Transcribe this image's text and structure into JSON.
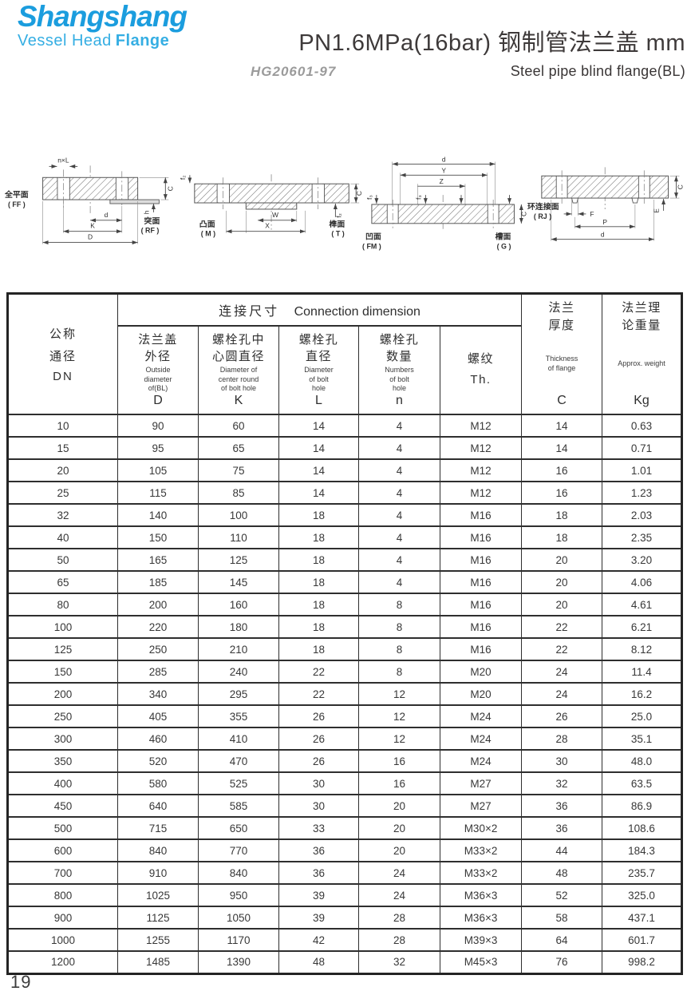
{
  "brand": {
    "name": "Shangshang",
    "tagline_vessel": "Vessel Head",
    "tagline_flange": "Flange",
    "name_color": "#1b9dde",
    "tagline_color": "#35aee3"
  },
  "header": {
    "title": "PN1.6MPa(16bar) 钢制管法兰盖  mm",
    "standard": "HG20601-97",
    "subtitle_en": "Steel pipe blind flange(BL)"
  },
  "diagrams": [
    {
      "left_cn": "全平面",
      "left_code": "( FF )",
      "right_cn": "突面",
      "right_code": "( RF )",
      "nxl": "n×L",
      "d": "d",
      "k": "K",
      "dd": "D",
      "c": "C",
      "h": "h"
    },
    {
      "left_cn": "凸面",
      "left_code": "( M )",
      "right_cn": "榫面",
      "right_code": "( T )",
      "w": "W",
      "x": "X",
      "c": "C",
      "f2": "f₂"
    },
    {
      "left_cn": "凹面",
      "left_code": "( FM )",
      "right_cn": "槽面",
      "right_code": "( G )",
      "d": "d",
      "y": "Y",
      "z": "Z",
      "c": "C",
      "f3": "f₃"
    },
    {
      "left_cn": "环连接面",
      "left_code": "( RJ )",
      "f": "F",
      "p": "P",
      "d": "d",
      "e": "E",
      "c": "C"
    }
  ],
  "table": {
    "group_header_cn": "连接尺寸",
    "group_header_en": "Connection dimension",
    "col_dn": {
      "cn1": "公称",
      "cn2": "通径",
      "sym": "DN"
    },
    "col_d": {
      "cn": "法兰盖\n外径",
      "en": "Outside\ndiameter\nof(BL)",
      "sym": "D"
    },
    "col_k": {
      "cn": "螺栓孔中\n心圆直径",
      "en": "Diameter of\ncenter round\nof bolt hole",
      "sym": "K"
    },
    "col_l": {
      "cn": "螺栓孔\n直径",
      "en": "Diameter\nof bolt\nhole",
      "sym": "L"
    },
    "col_n": {
      "cn": "螺栓孔\n数量",
      "en": "Numbers\nof bolt\nhole",
      "sym": "n"
    },
    "col_th": {
      "cn": "螺纹\nTh."
    },
    "col_c": {
      "cn": "法兰\n厚度",
      "en": "Thickness\nof flange",
      "sym": "C"
    },
    "col_kg": {
      "cn": "法兰理\n论重量",
      "en": "Approx. weight",
      "sym": "Kg"
    },
    "rows": [
      [
        "10",
        "90",
        "60",
        "14",
        "4",
        "M12",
        "14",
        "0.63"
      ],
      [
        "15",
        "95",
        "65",
        "14",
        "4",
        "M12",
        "14",
        "0.71"
      ],
      [
        "20",
        "105",
        "75",
        "14",
        "4",
        "M12",
        "16",
        "1.01"
      ],
      [
        "25",
        "115",
        "85",
        "14",
        "4",
        "M12",
        "16",
        "1.23"
      ],
      [
        "32",
        "140",
        "100",
        "18",
        "4",
        "M16",
        "18",
        "2.03"
      ],
      [
        "40",
        "150",
        "110",
        "18",
        "4",
        "M16",
        "18",
        "2.35"
      ],
      [
        "50",
        "165",
        "125",
        "18",
        "4",
        "M16",
        "20",
        "3.20"
      ],
      [
        "65",
        "185",
        "145",
        "18",
        "4",
        "M16",
        "20",
        "4.06"
      ],
      [
        "80",
        "200",
        "160",
        "18",
        "8",
        "M16",
        "20",
        "4.61"
      ],
      [
        "100",
        "220",
        "180",
        "18",
        "8",
        "M16",
        "22",
        "6.21"
      ],
      [
        "125",
        "250",
        "210",
        "18",
        "8",
        "M16",
        "22",
        "8.12"
      ],
      [
        "150",
        "285",
        "240",
        "22",
        "8",
        "M20",
        "24",
        "11.4"
      ],
      [
        "200",
        "340",
        "295",
        "22",
        "12",
        "M20",
        "24",
        "16.2"
      ],
      [
        "250",
        "405",
        "355",
        "26",
        "12",
        "M24",
        "26",
        "25.0"
      ],
      [
        "300",
        "460",
        "410",
        "26",
        "12",
        "M24",
        "28",
        "35.1"
      ],
      [
        "350",
        "520",
        "470",
        "26",
        "16",
        "M24",
        "30",
        "48.0"
      ],
      [
        "400",
        "580",
        "525",
        "30",
        "16",
        "M27",
        "32",
        "63.5"
      ],
      [
        "450",
        "640",
        "585",
        "30",
        "20",
        "M27",
        "36",
        "86.9"
      ],
      [
        "500",
        "715",
        "650",
        "33",
        "20",
        "M30×2",
        "36",
        "108.6"
      ],
      [
        "600",
        "840",
        "770",
        "36",
        "20",
        "M33×2",
        "44",
        "184.3"
      ],
      [
        "700",
        "910",
        "840",
        "36",
        "24",
        "M33×2",
        "48",
        "235.7"
      ],
      [
        "800",
        "1025",
        "950",
        "39",
        "24",
        "M36×3",
        "52",
        "325.0"
      ],
      [
        "900",
        "1125",
        "1050",
        "39",
        "28",
        "M36×3",
        "58",
        "437.1"
      ],
      [
        "1000",
        "1255",
        "1170",
        "42",
        "28",
        "M39×3",
        "64",
        "601.7"
      ],
      [
        "1200",
        "1485",
        "1390",
        "48",
        "32",
        "M45×3",
        "76",
        "998.2"
      ]
    ]
  },
  "footer": {
    "page_number": "19"
  }
}
